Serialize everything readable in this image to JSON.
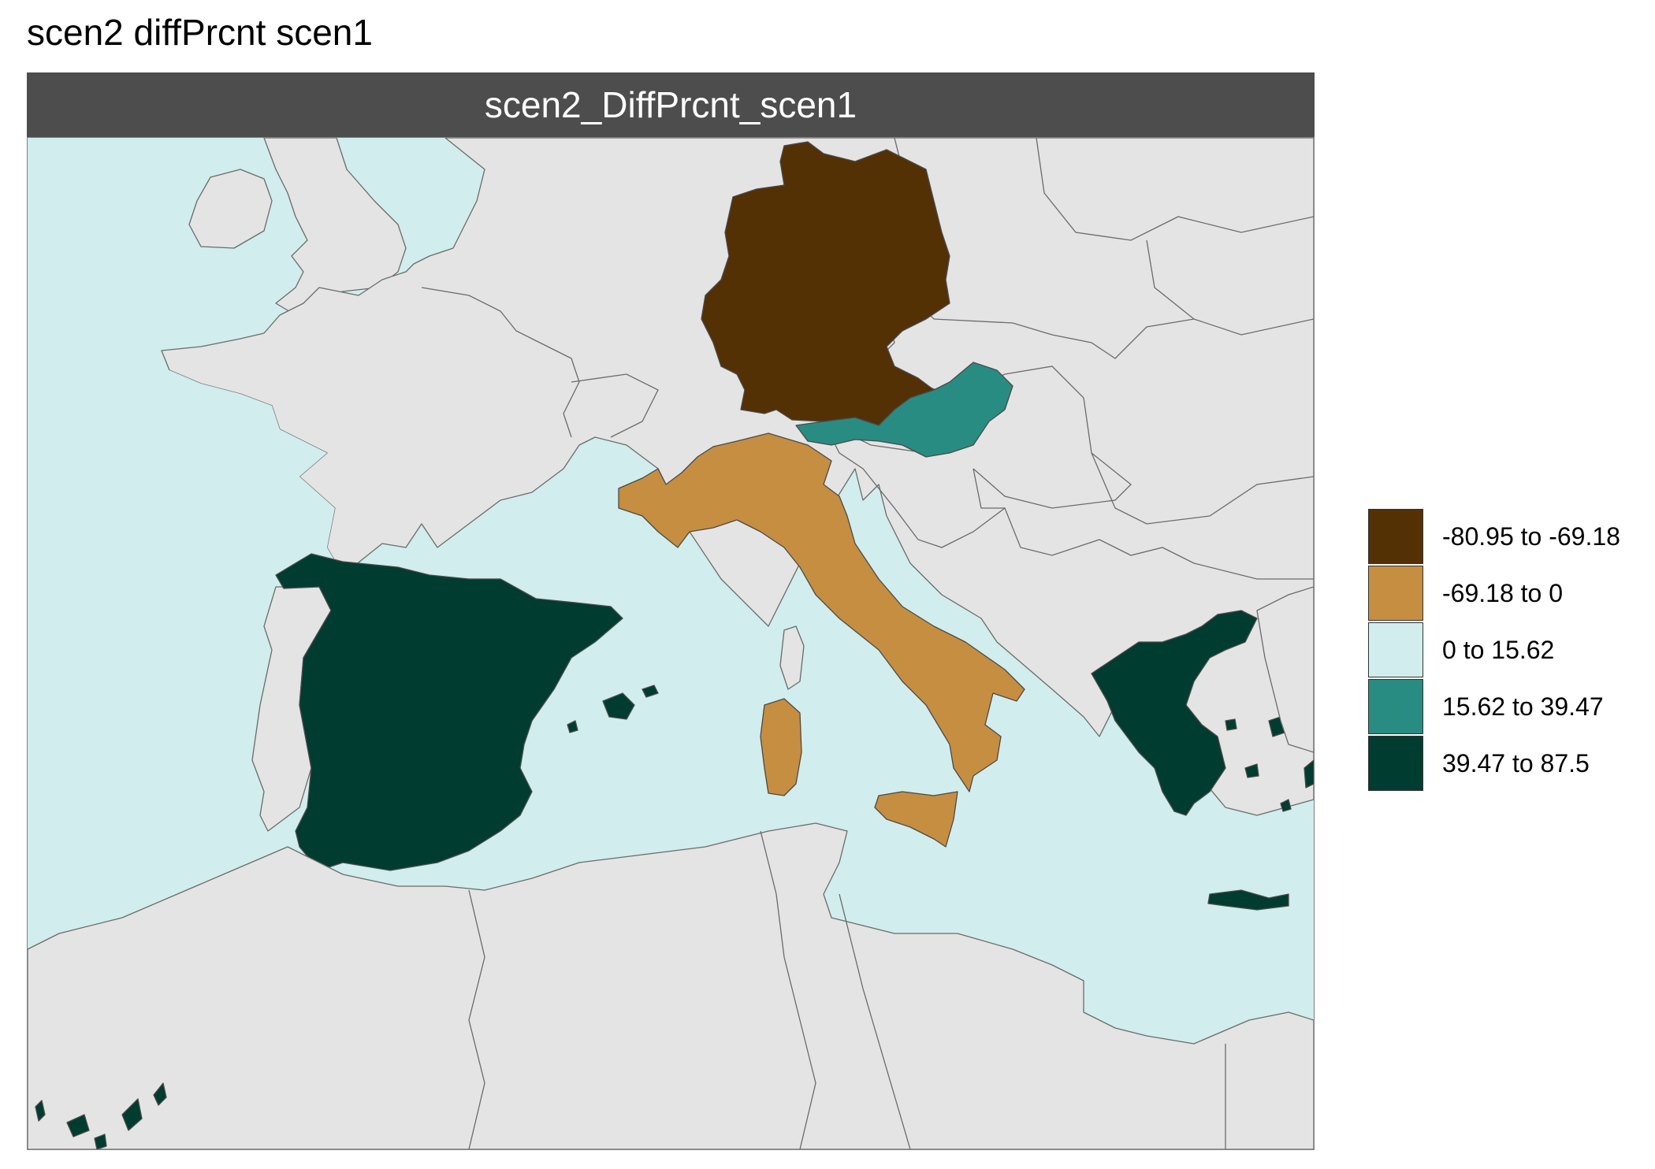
{
  "title": "scen2 diffPrcnt scen1",
  "panel": {
    "strip_label": "scen2_DiffPrcnt_scen1"
  },
  "colors": {
    "sea": "#d1eded",
    "land": "#e4e4e4",
    "class1": "#543005",
    "class2": "#c68e41",
    "class3": "#d1eded",
    "class4": "#288c82",
    "class5": "#003c30",
    "strip": "#4d4d4d"
  },
  "legend": [
    {
      "label": "-80.95 to -69.18",
      "color": "#543005"
    },
    {
      "label": "-69.18 to 0",
      "color": "#c68e41"
    },
    {
      "label": "0 to 15.62",
      "color": "#d1eded"
    },
    {
      "label": "15.62 to 39.47",
      "color": "#288c82"
    },
    {
      "label": "39.47 to 87.5",
      "color": "#003c30"
    }
  ],
  "regions": [
    {
      "name": "Germany",
      "class": "-80.95 to -69.18"
    },
    {
      "name": "Italy",
      "class": "-69.18 to 0"
    },
    {
      "name": "Austria",
      "class": "15.62 to 39.47"
    },
    {
      "name": "Spain",
      "class": "39.47 to 87.5"
    },
    {
      "name": "Greece",
      "class": "39.47 to 87.5"
    }
  ]
}
